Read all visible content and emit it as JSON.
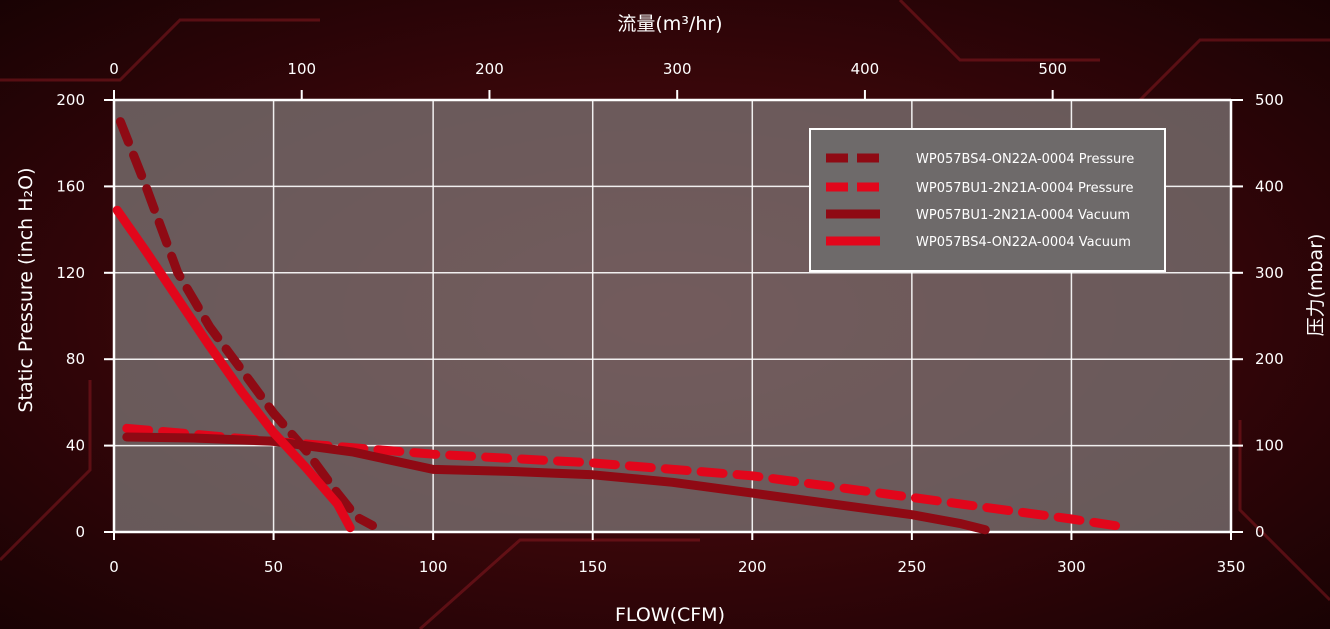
{
  "chart_data": {
    "type": "line",
    "title": "",
    "xlabel": "FLOW(CFM)",
    "ylabel": "Static Pressure (inch H₂O)",
    "x2label": "流量(m³/hr)",
    "y2label": "压力(mbar)",
    "xlim": [
      0,
      350
    ],
    "ylim": [
      0,
      200
    ],
    "x2lim": [
      0,
      595
    ],
    "y2lim": [
      0,
      500
    ],
    "x_ticks": [
      0,
      50,
      100,
      150,
      200,
      250,
      300,
      350
    ],
    "y_ticks": [
      0,
      40,
      80,
      120,
      160,
      200
    ],
    "x2_ticks": [
      0,
      100,
      200,
      300,
      400,
      500
    ],
    "y2_ticks": [
      0,
      100,
      200,
      300,
      400,
      500
    ],
    "grid": true,
    "legend_position": "top-right",
    "series": [
      {
        "name": "WP057BS4-ON22A-0004 Pressure",
        "style": "dashed",
        "color": "#8f0a14",
        "points": [
          [
            2,
            190
          ],
          [
            10,
            160
          ],
          [
            20,
            120
          ],
          [
            30,
            95
          ],
          [
            40,
            75
          ],
          [
            50,
            55
          ],
          [
            60,
            38
          ],
          [
            70,
            18
          ],
          [
            76,
            7
          ],
          [
            81,
            3
          ]
        ]
      },
      {
        "name": "WP057BU1-2N21A-0004 Pressure",
        "style": "dashed",
        "color": "#e2061b",
        "points": [
          [
            4,
            48
          ],
          [
            50,
            42
          ],
          [
            100,
            36
          ],
          [
            150,
            32
          ],
          [
            200,
            26
          ],
          [
            250,
            16
          ],
          [
            300,
            6
          ],
          [
            318,
            2
          ]
        ]
      },
      {
        "name": "WP057BU1-2N21A-0004 Vacuum",
        "style": "solid",
        "color": "#8f0a14",
        "points": [
          [
            4,
            44
          ],
          [
            25,
            43.5
          ],
          [
            50,
            42
          ],
          [
            75,
            37
          ],
          [
            100,
            29
          ],
          [
            125,
            28
          ],
          [
            150,
            26.5
          ],
          [
            175,
            23
          ],
          [
            200,
            18
          ],
          [
            225,
            13
          ],
          [
            250,
            8
          ],
          [
            265,
            4
          ],
          [
            273,
            1
          ]
        ]
      },
      {
        "name": "WP057BS4-ON22A-0004 Vacuum",
        "style": "solid",
        "color": "#e2061b",
        "points": [
          [
            1,
            149
          ],
          [
            10,
            130
          ],
          [
            20,
            108
          ],
          [
            30,
            86
          ],
          [
            40,
            65
          ],
          [
            50,
            46
          ],
          [
            60,
            30
          ],
          [
            70,
            13
          ],
          [
            74,
            2
          ]
        ]
      }
    ]
  }
}
